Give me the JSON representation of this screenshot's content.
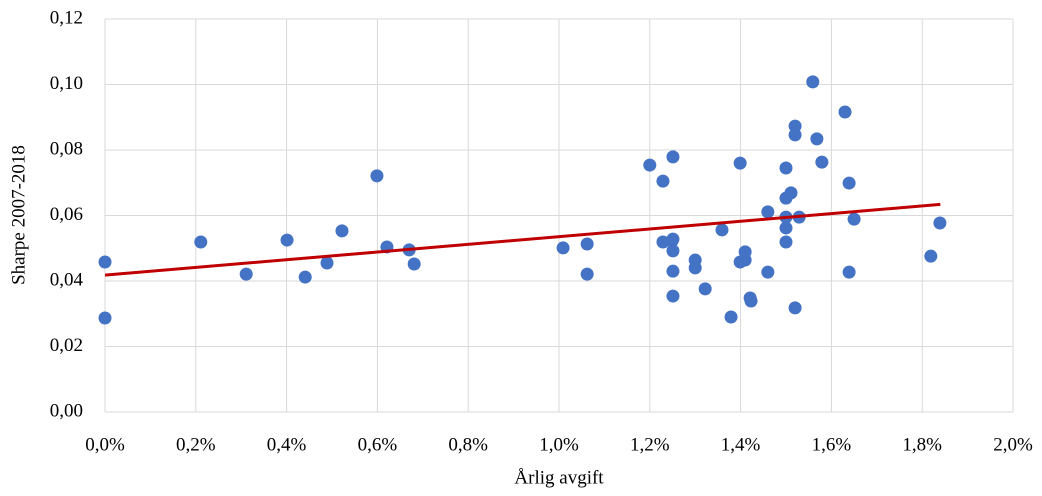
{
  "chart_data": {
    "type": "scatter",
    "xlabel": "Årlig avgift",
    "ylabel": "Sharpe 2007-2018",
    "xlim": [
      0,
      2
    ],
    "ylim": [
      0,
      0.12
    ],
    "xticks": [
      {
        "value": 0,
        "label": "0,0%"
      },
      {
        "value": 0.2,
        "label": "0,2%"
      },
      {
        "value": 0.4,
        "label": "0,4%"
      },
      {
        "value": 0.6,
        "label": "0,6%"
      },
      {
        "value": 0.8,
        "label": "0,8%"
      },
      {
        "value": 1.0,
        "label": "1,0%"
      },
      {
        "value": 1.2,
        "label": "1,2%"
      },
      {
        "value": 1.4,
        "label": "1,4%"
      },
      {
        "value": 1.6,
        "label": "1,6%"
      },
      {
        "value": 1.8,
        "label": "1,8%"
      },
      {
        "value": 2.0,
        "label": "2,0%"
      }
    ],
    "yticks": [
      {
        "value": 0,
        "label": "0,00"
      },
      {
        "value": 0.02,
        "label": "0,02"
      },
      {
        "value": 0.04,
        "label": "0,04"
      },
      {
        "value": 0.06,
        "label": "0,06"
      },
      {
        "value": 0.08,
        "label": "0,08"
      },
      {
        "value": 0.1,
        "label": "0,10"
      },
      {
        "value": 0.12,
        "label": "0,12"
      }
    ],
    "grid": true,
    "series": [
      {
        "color": "#4472c4",
        "x": [
          0,
          0,
          0.211,
          0.311,
          0.401,
          0.441,
          0.489,
          0.522,
          0.599,
          0.621,
          0.67,
          0.681,
          1.009,
          1.062,
          1.062,
          1.2,
          1.229,
          1.229,
          1.249,
          1.251,
          1.251,
          1.251,
          1.251,
          1.251,
          1.3,
          1.3,
          1.322,
          1.359,
          1.379,
          1.399,
          1.399,
          1.41,
          1.41,
          1.421,
          1.423,
          1.46,
          1.46,
          1.5,
          1.5,
          1.5,
          1.5,
          1.5,
          1.511,
          1.52,
          1.52,
          1.52,
          1.529,
          1.559,
          1.568,
          1.579,
          1.63,
          1.639,
          1.639,
          1.65,
          1.819,
          1.839
        ],
        "values": [
          0.0458,
          0.0287,
          0.0519,
          0.0421,
          0.0525,
          0.0412,
          0.0455,
          0.0553,
          0.0721,
          0.0504,
          0.0495,
          0.0452,
          0.0501,
          0.0513,
          0.0421,
          0.0754,
          0.0705,
          0.0519,
          0.0522,
          0.0779,
          0.0528,
          0.0492,
          0.043,
          0.0354,
          0.0464,
          0.044,
          0.0376,
          0.0556,
          0.029,
          0.076,
          0.0458,
          0.0464,
          0.0489,
          0.0348,
          0.0339,
          0.0611,
          0.0427,
          0.0745,
          0.0653,
          0.0595,
          0.0562,
          0.0519,
          0.0669,
          0.0873,
          0.0846,
          0.0318,
          0.0595,
          0.1008,
          0.0834,
          0.0763,
          0.0916,
          0.0699,
          0.0427,
          0.0589,
          0.0476,
          0.0577
        ]
      }
    ],
    "trendline": {
      "color": "#c00000",
      "x": [
        0,
        1.84
      ],
      "values": [
        0.0418,
        0.0634
      ]
    }
  }
}
